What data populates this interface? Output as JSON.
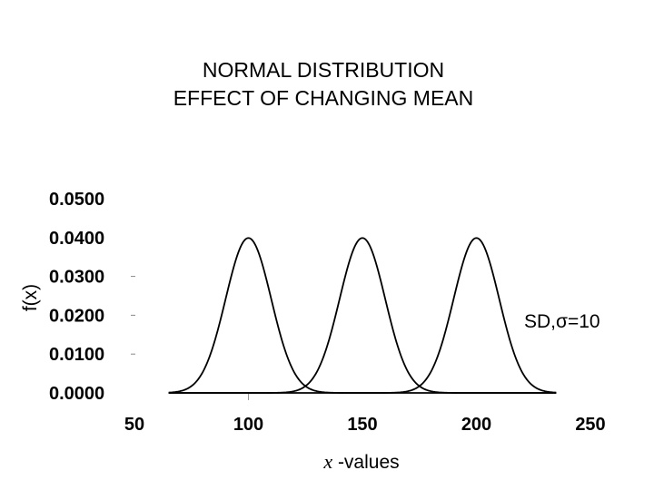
{
  "chart_data": {
    "type": "line",
    "title_lines": [
      "NORMAL DISTRIBUTION",
      "EFFECT OF CHANGING MEAN"
    ],
    "xlabel_var": "x",
    "xlabel_text": " -values",
    "ylabel": "f(x)",
    "xlim": [
      50,
      250
    ],
    "ylim": [
      0,
      0.05
    ],
    "x_ticks": [
      "50",
      "100",
      "150",
      "200",
      "250"
    ],
    "y_ticks": [
      "0.0000",
      "0.0100",
      "0.0200",
      "0.0300",
      "0.0400",
      "0.0500"
    ],
    "x_tick_values": [
      50,
      100,
      150,
      200,
      250
    ],
    "y_tick_values": [
      0,
      0.01,
      0.02,
      0.03,
      0.04,
      0.05
    ],
    "x_range_plotted": [
      65,
      235
    ],
    "annotation": "SD,σ=10",
    "series": [
      {
        "mean": 100,
        "sd": 10
      },
      {
        "mean": 150,
        "sd": 10
      },
      {
        "mean": 200,
        "sd": 10
      }
    ],
    "line_color": "#000000",
    "grid": false
  }
}
